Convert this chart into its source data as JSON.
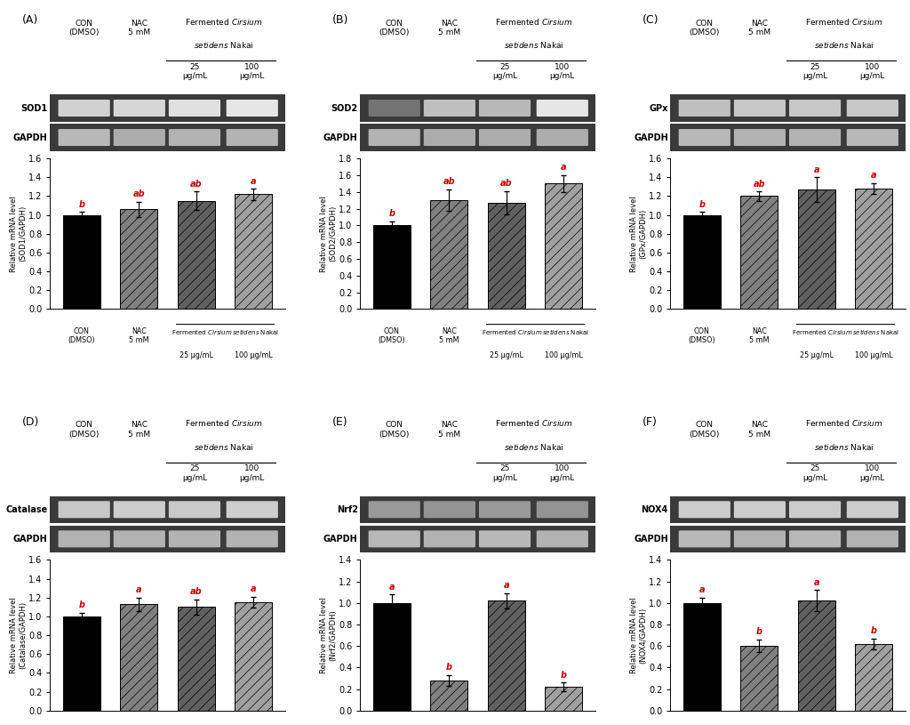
{
  "panels": [
    {
      "label": "A",
      "gene": "SOD1",
      "ylabel": "Relative mRNA level\n(SOD1/GAPDH)",
      "ylim": [
        0,
        1.6
      ],
      "yticks": [
        0.0,
        0.2,
        0.4,
        0.6,
        0.8,
        1.0,
        1.2,
        1.4,
        1.6
      ],
      "values": [
        1.0,
        1.06,
        1.15,
        1.22
      ],
      "errors": [
        0.03,
        0.08,
        0.1,
        0.06
      ],
      "sig_labels": [
        "b",
        "ab",
        "ab",
        "a"
      ]
    },
    {
      "label": "B",
      "gene": "SOD2",
      "ylabel": "Relative mRNA level\n(SOD2/GAPDH)",
      "ylim": [
        0,
        1.8
      ],
      "yticks": [
        0.0,
        0.2,
        0.4,
        0.6,
        0.8,
        1.0,
        1.2,
        1.4,
        1.6,
        1.8
      ],
      "values": [
        1.0,
        1.3,
        1.27,
        1.5
      ],
      "errors": [
        0.05,
        0.13,
        0.14,
        0.1
      ],
      "sig_labels": [
        "b",
        "ab",
        "ab",
        "a"
      ]
    },
    {
      "label": "C",
      "gene": "GPx",
      "ylabel": "Relative mRNA level\n(GPx/GAPDH)",
      "ylim": [
        0,
        1.6
      ],
      "yticks": [
        0.0,
        0.2,
        0.4,
        0.6,
        0.8,
        1.0,
        1.2,
        1.4,
        1.6
      ],
      "values": [
        1.0,
        1.2,
        1.27,
        1.28
      ],
      "errors": [
        0.03,
        0.05,
        0.13,
        0.06
      ],
      "sig_labels": [
        "b",
        "ab",
        "a",
        "a"
      ]
    },
    {
      "label": "D",
      "gene": "Catalase",
      "ylabel": "Relative mRNA level\n(Catalase/GAPDH)",
      "ylim": [
        0,
        1.6
      ],
      "yticks": [
        0.0,
        0.2,
        0.4,
        0.6,
        0.8,
        1.0,
        1.2,
        1.4,
        1.6
      ],
      "values": [
        1.0,
        1.13,
        1.1,
        1.15
      ],
      "errors": [
        0.04,
        0.07,
        0.08,
        0.06
      ],
      "sig_labels": [
        "b",
        "a",
        "ab",
        "a"
      ]
    },
    {
      "label": "E",
      "gene": "Nrf2",
      "ylabel": "Relative mRNA level\n(Nrf2/GAPDH)",
      "ylim": [
        0,
        1.4
      ],
      "yticks": [
        0.0,
        0.2,
        0.4,
        0.6,
        0.8,
        1.0,
        1.2,
        1.4
      ],
      "values": [
        1.0,
        0.28,
        1.02,
        0.22
      ],
      "errors": [
        0.08,
        0.05,
        0.07,
        0.04
      ],
      "sig_labels": [
        "a",
        "b",
        "a",
        "b"
      ]
    },
    {
      "label": "F",
      "gene": "NOX4",
      "ylabel": "Relative mRNA level\n(NOX4/GAPDH)",
      "ylim": [
        0,
        1.4
      ],
      "yticks": [
        0.0,
        0.2,
        0.4,
        0.6,
        0.8,
        1.0,
        1.2,
        1.4
      ],
      "values": [
        1.0,
        0.6,
        1.02,
        0.62
      ],
      "errors": [
        0.05,
        0.06,
        0.1,
        0.05
      ],
      "sig_labels": [
        "a",
        "b",
        "a",
        "b"
      ]
    }
  ],
  "gel_intensities": {
    "SOD1": {
      "gene": [
        0.82,
        0.84,
        0.88,
        0.9
      ],
      "gapdh": [
        0.72,
        0.68,
        0.7,
        0.7
      ]
    },
    "SOD2": {
      "gene": [
        0.45,
        0.75,
        0.72,
        0.9
      ],
      "gapdh": [
        0.7,
        0.68,
        0.68,
        0.68
      ]
    },
    "GPx": {
      "gene": [
        0.75,
        0.78,
        0.78,
        0.78
      ],
      "gapdh": [
        0.72,
        0.7,
        0.7,
        0.72
      ]
    },
    "Catalase": {
      "gene": [
        0.78,
        0.8,
        0.79,
        0.81
      ],
      "gapdh": [
        0.7,
        0.7,
        0.7,
        0.7
      ]
    },
    "Nrf2": {
      "gene": [
        0.6,
        0.58,
        0.6,
        0.58
      ],
      "gapdh": [
        0.72,
        0.7,
        0.72,
        0.7
      ]
    },
    "NOX4": {
      "gene": [
        0.8,
        0.8,
        0.8,
        0.8
      ],
      "gapdh": [
        0.72,
        0.7,
        0.72,
        0.7
      ]
    }
  },
  "sig_color": "#cc0000",
  "background_color": "#ffffff"
}
